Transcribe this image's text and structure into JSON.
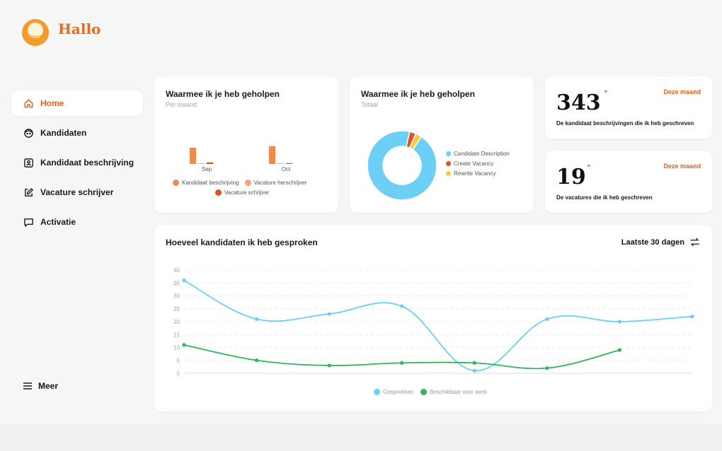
{
  "app": {
    "name": "Hallo"
  },
  "sidebar": {
    "items": [
      {
        "label": "Home",
        "icon": "home-icon",
        "active": true
      },
      {
        "label": "Kandidaten",
        "icon": "face-icon",
        "active": false
      },
      {
        "label": "Kandidaat beschrijving",
        "icon": "id-card-icon",
        "active": false
      },
      {
        "label": "Vacature schrijver",
        "icon": "edit-icon",
        "active": false
      },
      {
        "label": "Activatie",
        "icon": "chat-icon",
        "active": false
      }
    ],
    "more_label": "Meer"
  },
  "colors": {
    "accent": "#e8621c",
    "sky": "#6ccff6",
    "green": "#2fb55b",
    "yellow": "#f7c948"
  },
  "bar_card": {
    "title": "Waarmee ik je heb geholpen",
    "subtitle": "Per maand",
    "legend": [
      "Kandidaat beschrijving",
      "Vacature herschrijver",
      "Vacature schrijver"
    ]
  },
  "donut_card": {
    "title": "Waarmee ik je heb geholpen",
    "subtitle": "Totaal",
    "legend": [
      "Candidate Description",
      "Create Vacancy",
      "Rewrite Vacancy"
    ]
  },
  "stat1": {
    "value": "343",
    "period": "Deze maand",
    "description": "De kandidaat beschrijvingen die ik heb geschreven"
  },
  "stat2": {
    "value": "19",
    "period": "Deze maand",
    "description": "De vacatures die ik heb geschreven"
  },
  "line_card": {
    "title": "Hoeveel kandidaten ik heb gesproken",
    "range_label": "Laatste 30 dagen"
  },
  "chart_data": [
    {
      "type": "bar",
      "categories": [
        "Sep",
        "Oct"
      ],
      "series": [
        {
          "name": "Kandidaat beschrijving",
          "values": [
            20,
            22
          ],
          "color": "#f08a4b"
        },
        {
          "name": "Vacature herschrijver",
          "values": [
            0.4,
            0.4
          ],
          "color": "#f4a37a"
        },
        {
          "name": "Vacature schrijver",
          "values": [
            2,
            1
          ],
          "color": "#e0522a"
        }
      ]
    },
    {
      "type": "pie",
      "labels": [
        "Candidate Description",
        "Create Vacancy",
        "Rewrite Vacancy"
      ],
      "values": [
        94,
        3,
        3
      ],
      "colors": [
        "#6ccff6",
        "#e0522a",
        "#f7c948"
      ]
    },
    {
      "type": "line",
      "yticks": [
        0,
        5,
        10,
        15,
        20,
        25,
        30,
        35,
        40
      ],
      "ylim": [
        0,
        40
      ],
      "grid": true,
      "series": [
        {
          "name": "Gesprekken",
          "values": [
            36,
            21,
            23,
            26,
            1,
            21,
            20,
            22
          ],
          "color": "#6ccff6"
        },
        {
          "name": "Beschikbaar voor werk",
          "values": [
            11,
            5,
            3,
            4,
            4,
            2,
            9
          ],
          "color": "#2fb55b"
        }
      ],
      "legend_position": "bottom-center"
    }
  ]
}
